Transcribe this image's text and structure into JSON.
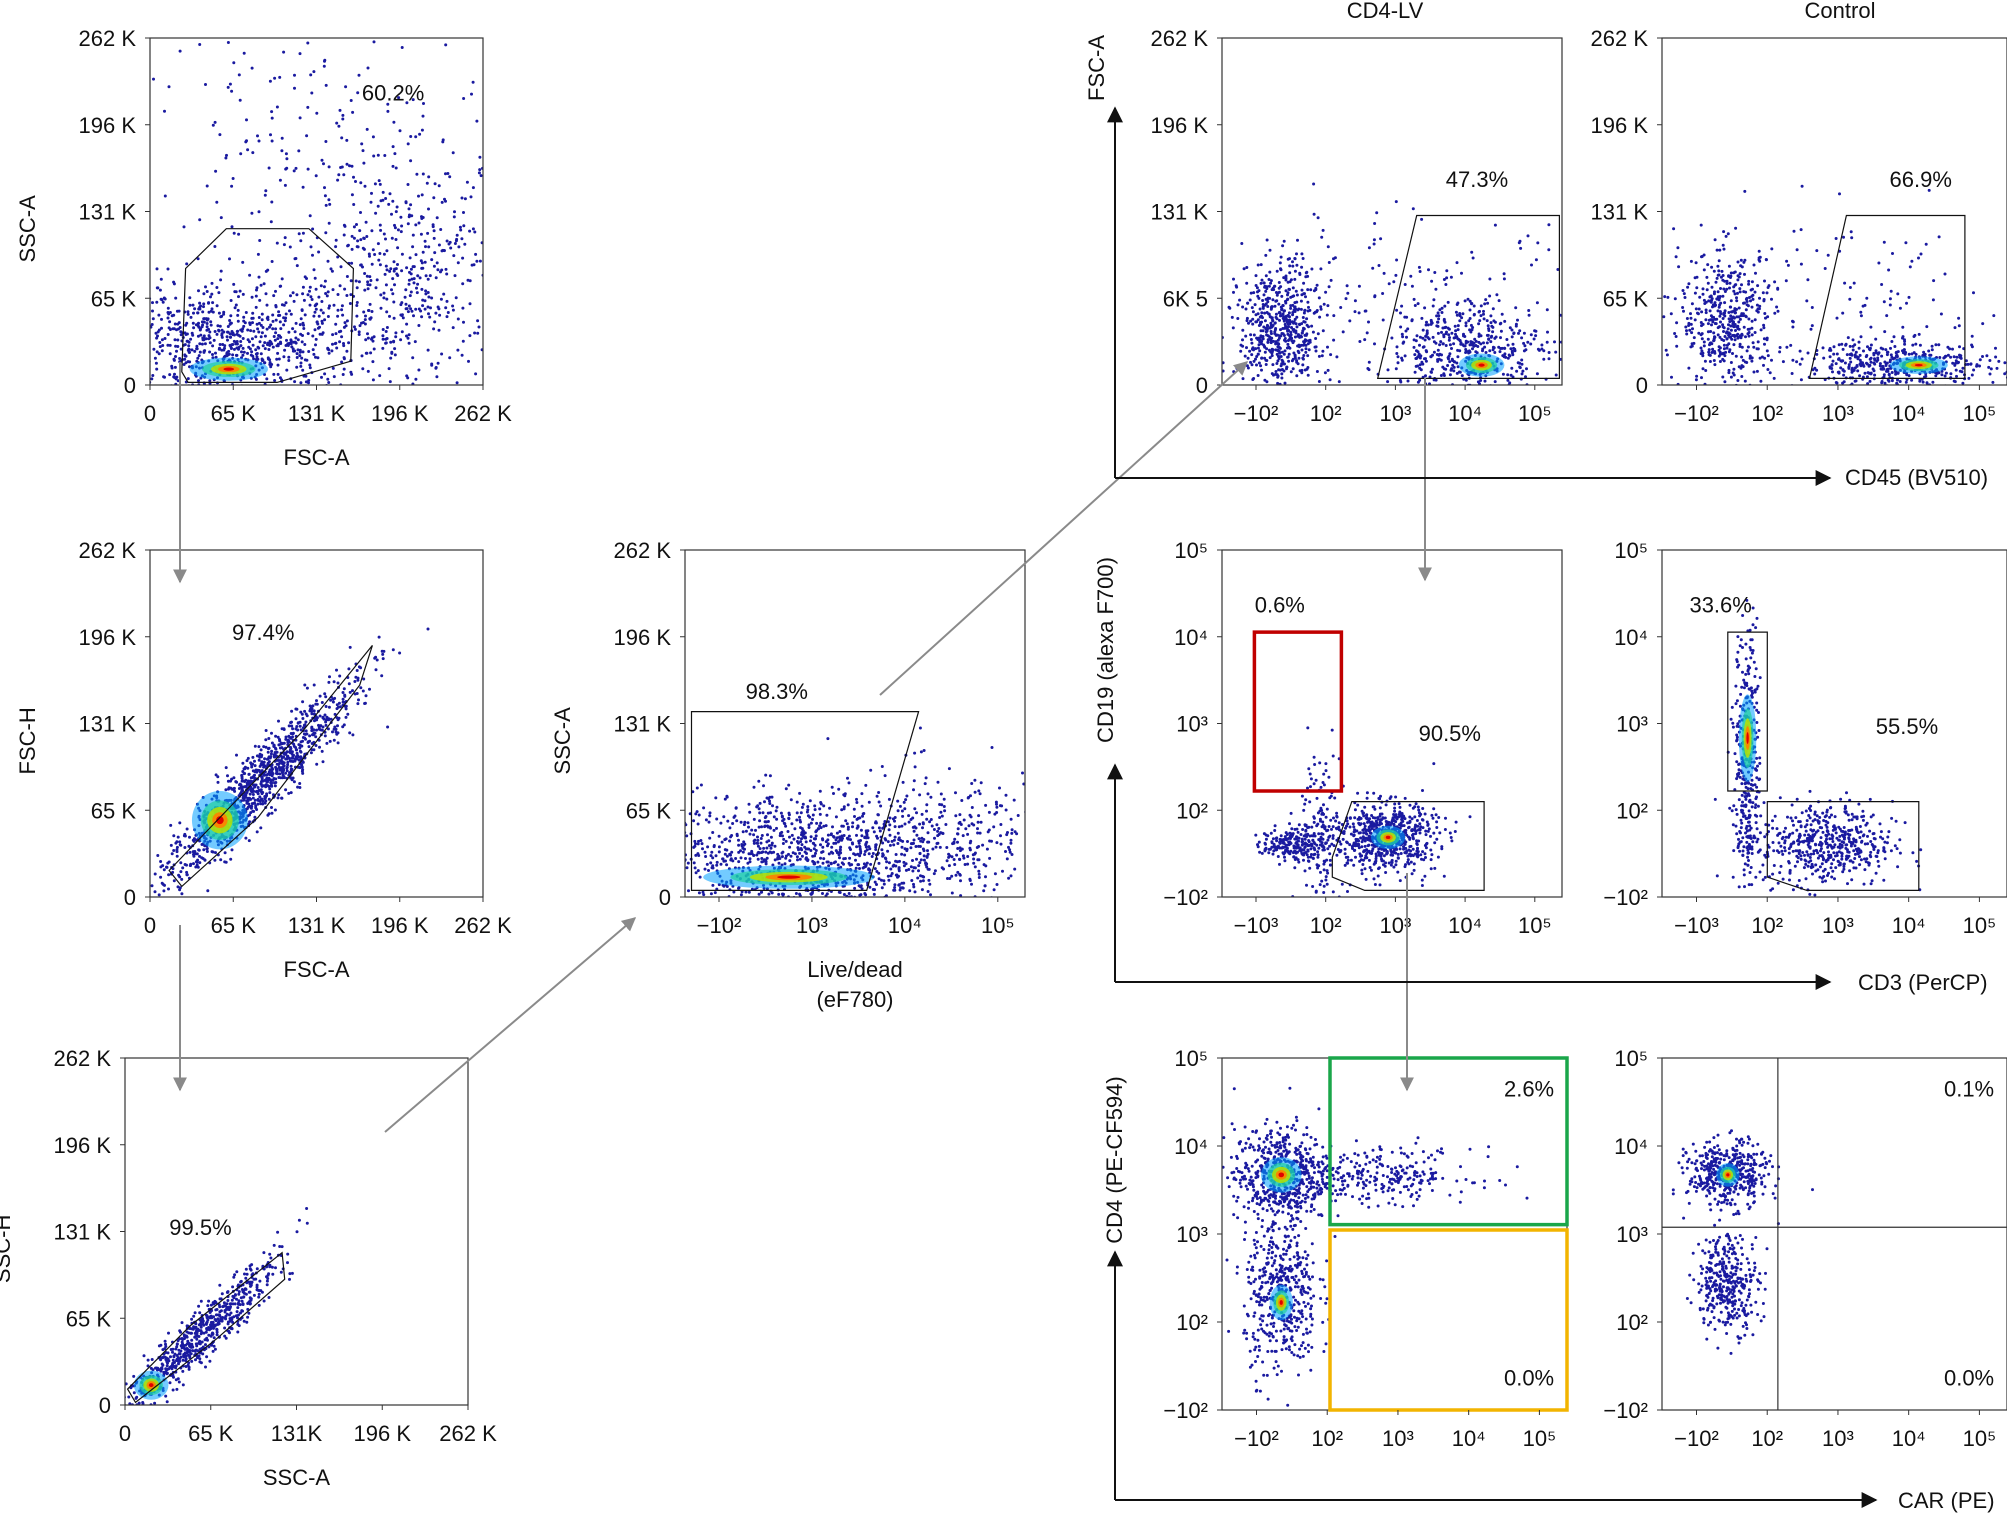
{
  "colors": {
    "dot": "#1a1aa0",
    "gate_red": "#c00000",
    "gate_green": "#1aa64a",
    "gate_yellow": "#f2b400",
    "connector": "#8a8a8a",
    "axis": "#111111"
  },
  "column_headers": [
    "CD4-LV",
    "Control"
  ],
  "shared_axes": {
    "top_y": "FSC-A",
    "top_x": "CD45 (BV510)",
    "mid_y": "CD19 (alexa F700)",
    "mid_x": "CD3 (PerCP)",
    "bot_y": "CD4 (PE-CF594)",
    "bot_x": "CAR (PE)"
  },
  "chart_data": [
    {
      "id": "p1",
      "type": "scatter",
      "title": "",
      "xlabel": "FSC-A",
      "ylabel": "SSC-A",
      "xticks": [
        "0",
        "65 K",
        "131 K",
        "196 K",
        "262 K"
      ],
      "yticks": [
        "0",
        "65 K",
        "131 K",
        "196 K",
        "262 K"
      ],
      "xlim": [
        0,
        262
      ],
      "ylim": [
        0,
        262
      ],
      "populations": [
        {
          "cx": 60,
          "cy": 30,
          "sx": 55,
          "sy": 22,
          "n": 900
        },
        {
          "cx": 200,
          "cy": 80,
          "sx": 45,
          "sy": 45,
          "n": 500
        },
        {
          "cx": 130,
          "cy": 180,
          "sx": 70,
          "sy": 50,
          "n": 180
        }
      ],
      "hotspots": [
        {
          "cx": 62,
          "cy": 12,
          "sx": 14,
          "sy": 4
        }
      ],
      "gates": [
        {
          "value": "60.2%",
          "polygon": [
            [
              25,
              10
            ],
            [
              28,
              88
            ],
            [
              60,
              118
            ],
            [
              125,
              118
            ],
            [
              160,
              88
            ],
            [
              158,
              18
            ],
            [
              100,
              2
            ],
            [
              30,
              2
            ]
          ]
        }
      ]
    },
    {
      "id": "p2",
      "type": "scatter",
      "title": "",
      "xlabel": "FSC-A",
      "ylabel": "FSC-H",
      "xticks": [
        "0",
        "65 K",
        "131 K",
        "196 K",
        "262 K"
      ],
      "yticks": [
        "0",
        "65 K",
        "131 K",
        "196 K",
        "262 K"
      ],
      "xlim": [
        0,
        262
      ],
      "ylim": [
        0,
        262
      ],
      "populations": [
        {
          "cx": 85,
          "cy": 85,
          "sx": 38,
          "sy": 38,
          "corr": true,
          "n": 1100
        }
      ],
      "hotspots": [
        {
          "cx": 55,
          "cy": 58,
          "sx": 10,
          "sy": 10
        }
      ],
      "gates": [
        {
          "value": "97.4%",
          "polygon": [
            [
              15,
              20
            ],
            [
              120,
              125
            ],
            [
              175,
              190
            ],
            [
              165,
              160
            ],
            [
              85,
              60
            ],
            [
              25,
              8
            ]
          ]
        }
      ]
    },
    {
      "id": "p3",
      "type": "scatter",
      "title": "",
      "xlabel": "SSC-A",
      "ylabel": "SSC-H",
      "xticks": [
        "0",
        "65 K",
        "131K",
        "196 K",
        "262 K"
      ],
      "yticks": [
        "0",
        "65 K",
        "131 K",
        "196 K",
        "262 K"
      ],
      "xlim": [
        0,
        262
      ],
      "ylim": [
        0,
        262
      ],
      "populations": [
        {
          "cx": 55,
          "cy": 50,
          "sx": 30,
          "sy": 30,
          "corr": true,
          "n": 700
        }
      ],
      "hotspots": [
        {
          "cx": 20,
          "cy": 15,
          "sx": 6,
          "sy": 5
        }
      ],
      "gates": [
        {
          "value": "99.5%",
          "polygon": [
            [
              2,
              12
            ],
            [
              50,
              60
            ],
            [
              120,
              115
            ],
            [
              122,
              95
            ],
            [
              70,
              50
            ],
            [
              8,
              2
            ]
          ]
        }
      ]
    },
    {
      "id": "p4",
      "type": "scatter",
      "title": "",
      "xlabel": "Live/dead",
      "xlabel2": "(eF780)",
      "ylabel": "SSC-A",
      "xticks": [
        "−10²",
        "10³",
        "10⁴",
        "10⁵"
      ],
      "yticks": [
        "0",
        "65 K",
        "131 K",
        "196 K",
        "262 K"
      ],
      "xlim": [
        0,
        262
      ],
      "ylim": [
        0,
        262
      ],
      "populations": [
        {
          "cx": 90,
          "cy": 30,
          "sx": 55,
          "sy": 25,
          "n": 1100
        },
        {
          "cx": 200,
          "cy": 45,
          "sx": 45,
          "sy": 25,
          "n": 300
        }
      ],
      "hotspots": [
        {
          "cx": 80,
          "cy": 15,
          "sx": 30,
          "sy": 4
        }
      ],
      "gates": [
        {
          "value": "98.3%",
          "polygon": [
            [
              5,
              5
            ],
            [
              5,
              140
            ],
            [
              180,
              140
            ],
            [
              140,
              5
            ]
          ]
        }
      ]
    },
    {
      "id": "p5",
      "type": "scatter",
      "title": "",
      "xlabel": "",
      "ylabel": "FSC-A",
      "xticks": [
        "−10²",
        "10²",
        "10³",
        "10⁴",
        "10⁵"
      ],
      "yticks": [
        "0",
        "6K 5",
        "131 K",
        "196 K",
        "262 K"
      ],
      "xlim": [
        0,
        262
      ],
      "ylim": [
        0,
        262
      ],
      "populations": [
        {
          "cx": 45,
          "cy": 40,
          "sx": 16,
          "sy": 25,
          "n": 600
        },
        {
          "cx": 190,
          "cy": 25,
          "sx": 30,
          "sy": 20,
          "n": 500
        },
        {
          "cx": 140,
          "cy": 60,
          "sx": 70,
          "sy": 35,
          "n": 150
        }
      ],
      "hotspots": [
        {
          "cx": 200,
          "cy": 15,
          "sx": 8,
          "sy": 4
        }
      ],
      "gates": [
        {
          "value": "47.3%",
          "polygon": [
            [
              120,
              5
            ],
            [
              150,
              128
            ],
            [
              260,
              128
            ],
            [
              260,
              5
            ]
          ]
        }
      ]
    },
    {
      "id": "p6",
      "type": "scatter",
      "title": "",
      "xlabel": "",
      "ylabel": "",
      "xticks": [
        "−10²",
        "10²",
        "10³",
        "10⁴",
        "10⁵"
      ],
      "yticks": [
        "0",
        "65 K",
        "131 K",
        "196 K",
        "262 K"
      ],
      "xlim": [
        0,
        262
      ],
      "ylim": [
        0,
        262
      ],
      "populations": [
        {
          "cx": 50,
          "cy": 50,
          "sx": 18,
          "sy": 25,
          "n": 450
        },
        {
          "cx": 180,
          "cy": 15,
          "sx": 38,
          "sy": 9,
          "n": 450
        },
        {
          "cx": 140,
          "cy": 60,
          "sx": 70,
          "sy": 35,
          "n": 120
        }
      ],
      "hotspots": [
        {
          "cx": 195,
          "cy": 15,
          "sx": 10,
          "sy": 3
        }
      ],
      "gates": [
        {
          "value": "66.9%",
          "polygon": [
            [
              112,
              5
            ],
            [
              140,
              128
            ],
            [
              230,
              128
            ],
            [
              230,
              5
            ]
          ]
        }
      ]
    },
    {
      "id": "p7",
      "type": "scatter",
      "title": "",
      "xlabel": "",
      "ylabel": "CD19 (alexa F700)",
      "xticks": [
        "−10³",
        "10²",
        "10³",
        "10⁴",
        "10⁵"
      ],
      "yticks": [
        "−10²",
        "10²",
        "10³",
        "10⁴",
        "10⁵"
      ],
      "xlim": [
        0,
        262
      ],
      "ylim": [
        0,
        262
      ],
      "populations": [
        {
          "cx": 75,
          "cy": 45,
          "sx": 8,
          "sy": 35,
          "n": 150
        },
        {
          "cx": 125,
          "cy": 45,
          "sx": 20,
          "sy": 13,
          "n": 650
        },
        {
          "cx": 55,
          "cy": 40,
          "sx": 12,
          "sy": 6,
          "n": 200
        }
      ],
      "hotspots": [
        {
          "cx": 128,
          "cy": 45,
          "sx": 6,
          "sy": 4
        }
      ],
      "gates": [
        {
          "value": "0.6%",
          "color": "gate_red",
          "polygon": [
            [
              25,
              80
            ],
            [
              25,
              200
            ],
            [
              92,
              200
            ],
            [
              92,
              80
            ]
          ]
        },
        {
          "value": "90.5%",
          "polygon": [
            [
              85,
              30
            ],
            [
              100,
              72
            ],
            [
              202,
              72
            ],
            [
              202,
              5
            ],
            [
              110,
              5
            ],
            [
              85,
              15
            ]
          ]
        }
      ]
    },
    {
      "id": "p8",
      "type": "scatter",
      "title": "",
      "xlabel": "",
      "ylabel": "",
      "xticks": [
        "−10³",
        "10²",
        "10³",
        "10⁴",
        "10⁵"
      ],
      "yticks": [
        "−10²",
        "10²",
        "10³",
        "10⁴",
        "10⁵"
      ],
      "xlim": [
        0,
        262
      ],
      "ylim": [
        0,
        262
      ],
      "populations": [
        {
          "cx": 65,
          "cy": 100,
          "sx": 5,
          "sy": 50,
          "n": 350
        },
        {
          "cx": 125,
          "cy": 40,
          "sx": 25,
          "sy": 16,
          "n": 500
        }
      ],
      "hotspots": [
        {
          "cx": 65,
          "cy": 120,
          "sx": 3,
          "sy": 15
        }
      ],
      "gates": [
        {
          "value": "33.6%",
          "polygon": [
            [
              50,
              80
            ],
            [
              50,
              200
            ],
            [
              80,
              200
            ],
            [
              80,
              80
            ]
          ]
        },
        {
          "value": "55.5%",
          "polygon": [
            [
              80,
              15
            ],
            [
              80,
              72
            ],
            [
              195,
              72
            ],
            [
              195,
              5
            ],
            [
              110,
              5
            ]
          ]
        }
      ]
    },
    {
      "id": "p9",
      "type": "scatter",
      "title": "",
      "xlabel": "",
      "ylabel": "CD4 (PE-CF594)",
      "xticks": [
        "−10²",
        "10²",
        "10³",
        "10⁴",
        "10⁵"
      ],
      "yticks": [
        "−10²",
        "10²",
        "10³",
        "10⁴",
        "10⁵"
      ],
      "xlim": [
        0,
        262
      ],
      "ylim": [
        0,
        262
      ],
      "populations": [
        {
          "cx": 45,
          "cy": 175,
          "sx": 18,
          "sy": 18,
          "n": 550
        },
        {
          "cx": 45,
          "cy": 85,
          "sx": 14,
          "sy": 30,
          "n": 450
        },
        {
          "cx": 120,
          "cy": 175,
          "sx": 35,
          "sy": 10,
          "n": 250
        }
      ],
      "hotspots": [
        {
          "cx": 45,
          "cy": 175,
          "sx": 7,
          "sy": 6
        },
        {
          "cx": 45,
          "cy": 80,
          "sx": 4,
          "sy": 6
        }
      ],
      "gates": [
        {
          "value": "2.6%",
          "color": "gate_green",
          "polygon": [
            [
              82,
              138
            ],
            [
              82,
              262
            ],
            [
              262,
              262
            ],
            [
              262,
              138
            ]
          ]
        },
        {
          "value": "0.0%",
          "color": "gate_yellow",
          "polygon": [
            [
              82,
              0
            ],
            [
              82,
              134
            ],
            [
              262,
              134
            ],
            [
              262,
              0
            ]
          ]
        }
      ]
    },
    {
      "id": "p10",
      "type": "scatter",
      "title": "",
      "xlabel": "",
      "ylabel": "",
      "xticks": [
        "−10²",
        "10²",
        "10³",
        "10⁴",
        "10⁵"
      ],
      "yticks": [
        "−10²",
        "10²",
        "10³",
        "10⁴",
        "10⁵"
      ],
      "xlim": [
        0,
        262
      ],
      "ylim": [
        0,
        262
      ],
      "populations": [
        {
          "cx": 50,
          "cy": 175,
          "sx": 15,
          "sy": 12,
          "n": 450
        },
        {
          "cx": 50,
          "cy": 95,
          "sx": 12,
          "sy": 18,
          "n": 350
        }
      ],
      "hotspots": [
        {
          "cx": 50,
          "cy": 175,
          "sx": 4,
          "sy": 4
        }
      ],
      "gates": [
        {
          "value": "0.1%",
          "quad": true,
          "polygon": [
            [
              88,
              136
            ],
            [
              88,
              262
            ],
            [
              262,
              262
            ],
            [
              262,
              136
            ]
          ]
        },
        {
          "value": "0.0%",
          "quad": true,
          "polygon": [
            [
              88,
              0
            ],
            [
              88,
              136
            ],
            [
              262,
              136
            ],
            [
              262,
              0
            ]
          ]
        }
      ]
    }
  ]
}
